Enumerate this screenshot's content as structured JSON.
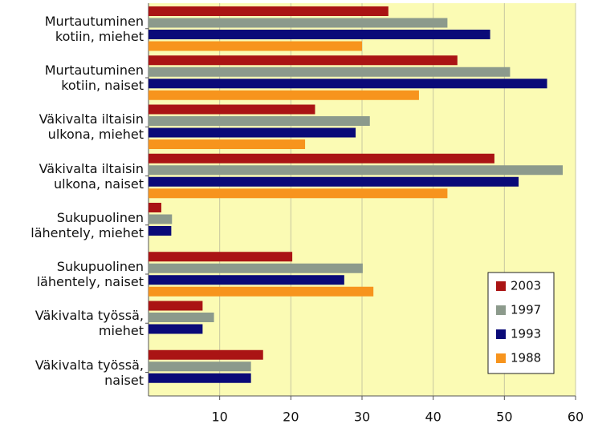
{
  "chart_data": {
    "type": "hbar",
    "categories": [
      "Murtautuminen\nkotiin, miehet",
      "Murtautuminen\nkotiin, naiset",
      "Väkivalta iltaisin\nulkona, miehet",
      "Väkivalta iltaisin\nulkona, naiset",
      "Sukupuolinen\nlähentely, miehet",
      "Sukupuolinen\nlähentely, naiset",
      "Väkivalta työssä,\nmiehet",
      "Väkivalta työssä,\nnaiset"
    ],
    "series": [
      {
        "name": "2003",
        "color": "#aa1414",
        "values": [
          33.7,
          43.4,
          23.4,
          48.6,
          1.8,
          20.2,
          7.6,
          16.1
        ]
      },
      {
        "name": "1997",
        "color": "#8c9a8c",
        "values": [
          42,
          50.8,
          31.1,
          58.2,
          3.3,
          30.1,
          9.2,
          14.4
        ]
      },
      {
        "name": "1993",
        "color": "#0a0a78",
        "values": [
          48,
          56,
          29.1,
          52,
          3.2,
          27.5,
          7.6,
          14.4
        ]
      },
      {
        "name": "1988",
        "color": "#f7941d",
        "values": [
          30,
          38,
          22,
          42,
          null,
          31.6,
          null,
          null
        ]
      }
    ],
    "xlim": [
      0,
      60
    ],
    "xticks": [
      10,
      20,
      30,
      40,
      50,
      60
    ],
    "grid": true,
    "legend": "lower right"
  }
}
